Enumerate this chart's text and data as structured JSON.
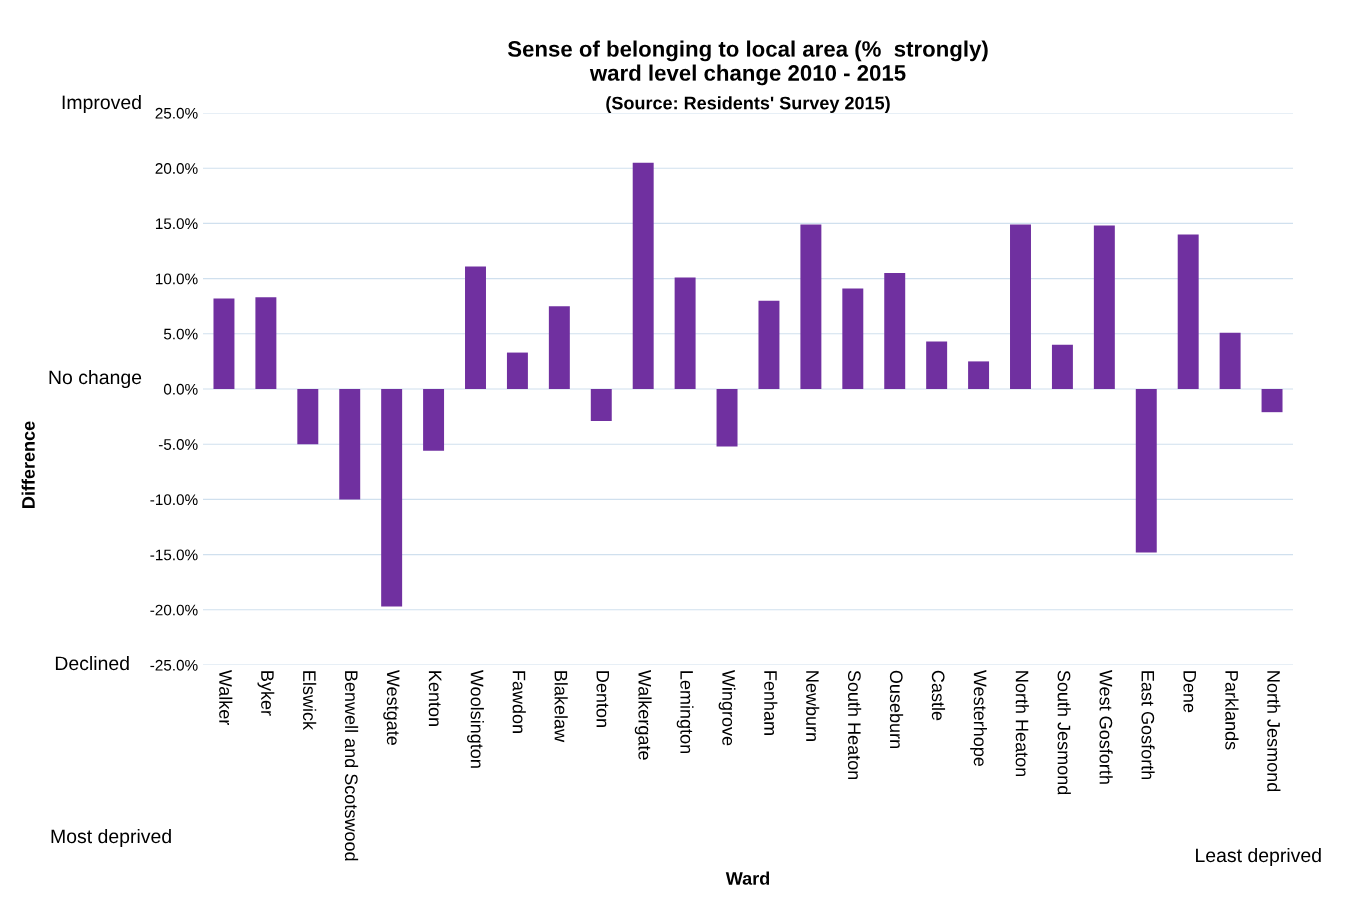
{
  "chart_data": {
    "type": "bar",
    "title": "Sense of belonging to local area (%  strongly)\nward level change 2010 - 2015",
    "subtitle": "(Source: Residents' Survey 2015)",
    "xlabel": "Ward",
    "categories": [
      "Walker",
      "Byker",
      "Elswick",
      "Benwell and Scotswood",
      "Westgate",
      "Kenton",
      "Woolsington",
      "Fawdon",
      "Blakelaw",
      "Denton",
      "Walkergate",
      "Lemington",
      "Wingrove",
      "Fenham",
      "Newburn",
      "South Heaton",
      "Ouseburn",
      "Castle",
      "Westerhope",
      "North Heaton",
      "South Jesmond",
      "West Gosforth",
      "East Gosforth",
      "Dene",
      "Parklands",
      "North Jesmond"
    ],
    "values": [
      8.2,
      8.3,
      -5.0,
      -10.0,
      -19.7,
      -5.6,
      11.1,
      3.3,
      7.5,
      -2.9,
      20.5,
      10.1,
      -5.2,
      8.0,
      14.9,
      9.1,
      10.5,
      4.3,
      2.5,
      14.9,
      4.0,
      14.8,
      -14.8,
      14.0,
      5.1,
      -2.1
    ],
    "color": "#7030a0",
    "ylim": [
      -25,
      25
    ],
    "yticks": [
      {
        "value": -25,
        "label": "-25.0%"
      },
      {
        "value": -20,
        "label": "-20.0%"
      },
      {
        "value": -15,
        "label": "-15.0%"
      },
      {
        "value": -10,
        "label": "-10.0%"
      },
      {
        "value": -5,
        "label": "-5.0%"
      },
      {
        "value": 0,
        "label": "0.0%"
      },
      {
        "value": 5,
        "label": "5.0%"
      },
      {
        "value": 10,
        "label": "10.0%"
      },
      {
        "value": 15,
        "label": "15.0%"
      },
      {
        "value": 20,
        "label": "20.0%"
      },
      {
        "value": 25,
        "label": "25.0%"
      }
    ],
    "grid": "y",
    "legend": false,
    "annotations": [
      "Improved",
      "No change",
      "Declined",
      "Most deprived",
      "Least deprived",
      "Difference"
    ]
  }
}
